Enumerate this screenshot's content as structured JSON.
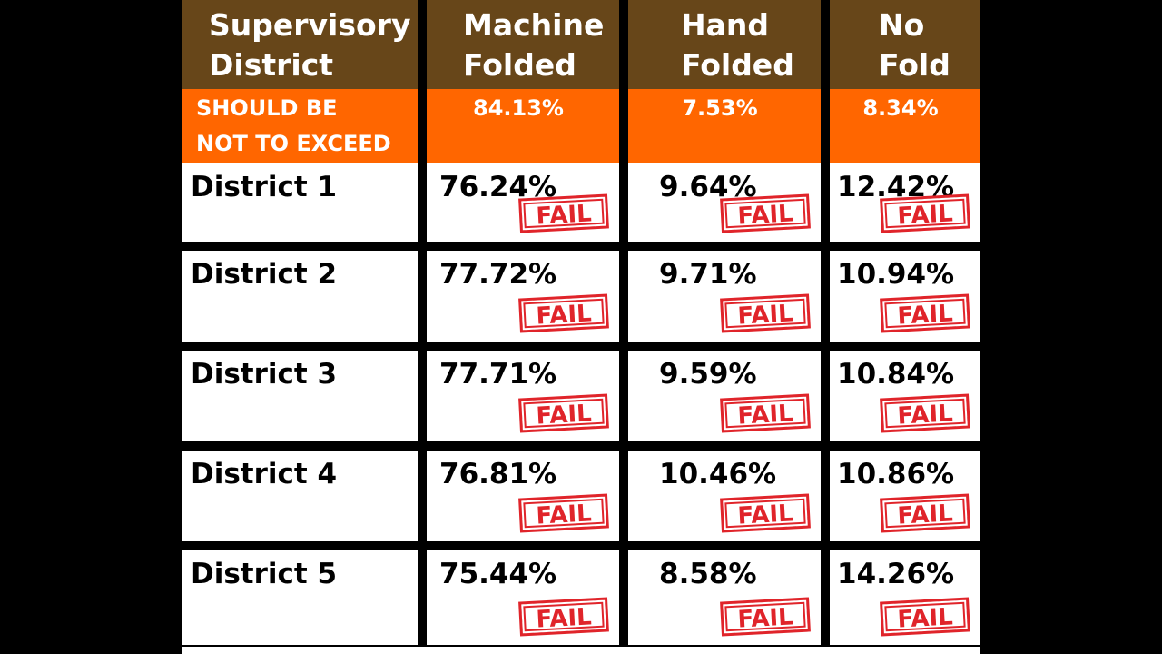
{
  "chart_data": {
    "type": "table",
    "columns": [
      "Supervisory District",
      "Machine Folded",
      "Hand Folded",
      "No Fold"
    ],
    "header_lines": [
      [
        "Supervisory",
        "District"
      ],
      [
        "Machine",
        "Folded"
      ],
      [
        "Hand",
        "Folded"
      ],
      [
        "No",
        "Fold"
      ]
    ],
    "standard_row": {
      "label_lines": [
        "SHOULD BE",
        "NOT TO EXCEED"
      ],
      "values": [
        "84.13%",
        "7.53%",
        "8.34%"
      ]
    },
    "rows": [
      {
        "district": "District 1",
        "values": [
          "76.24%",
          "9.64%",
          "12.42%"
        ]
      },
      {
        "district": "District 2",
        "values": [
          "77.72%",
          "9.71%",
          "10.94%"
        ]
      },
      {
        "district": "District 3",
        "values": [
          "77.71%",
          "9.59%",
          "10.84%"
        ]
      },
      {
        "district": "District 4",
        "values": [
          "76.81%",
          "10.46%",
          "10.86%"
        ]
      },
      {
        "district": "District 5",
        "values": [
          "75.44%",
          "8.58%",
          "14.26%"
        ]
      }
    ],
    "stamp_label": "FAIL"
  },
  "colors": {
    "header": "#674619",
    "standard": "#ff6600",
    "stamp": "#e0242a",
    "background": "#000000"
  }
}
